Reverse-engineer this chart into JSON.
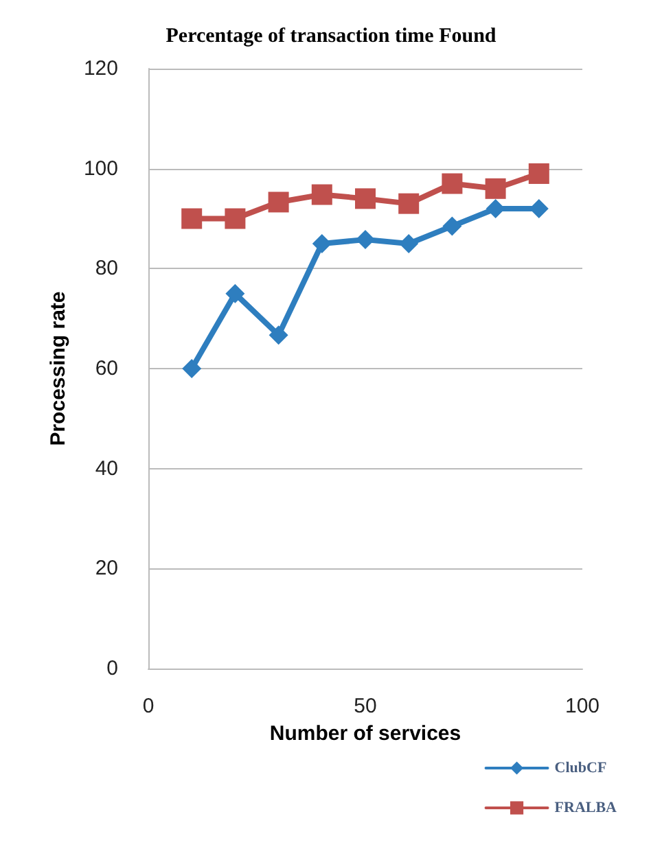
{
  "chart_data": {
    "type": "line",
    "title": "Percentage of transaction time Found",
    "xlabel": "Number of services",
    "ylabel": "Processing rate",
    "x": [
      10,
      20,
      30,
      40,
      50,
      60,
      70,
      80,
      90
    ],
    "series": [
      {
        "name": "ClubCF",
        "color": "#2e7ebf",
        "marker": "diamond",
        "values": [
          60,
          75,
          66.7,
          85,
          85.8,
          85,
          88.5,
          92,
          92
        ]
      },
      {
        "name": "FRALBA",
        "color": "#c0504d",
        "marker": "square",
        "values": [
          90,
          90,
          93.3,
          94.8,
          94,
          93,
          97,
          96,
          99
        ]
      }
    ],
    "xlim": [
      0,
      100
    ],
    "xticks": [
      0,
      50,
      100
    ],
    "ylim": [
      0,
      120
    ],
    "yticks": [
      0,
      20,
      40,
      60,
      80,
      100,
      120
    ],
    "grid": "y",
    "legend": "bottom right",
    "line_style": "solid"
  }
}
